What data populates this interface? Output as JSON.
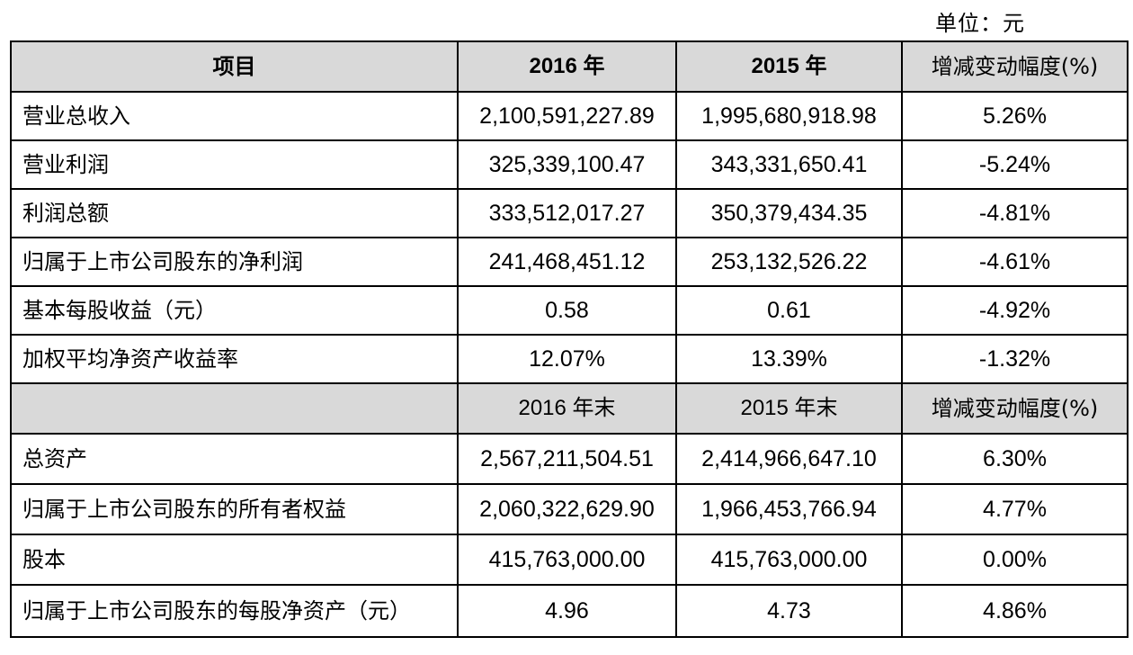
{
  "unit_label": "单位：元",
  "header": {
    "item": "项目",
    "year1": "2016 年",
    "year2": "2015 年",
    "change": "增减变动幅度(%)"
  },
  "rows_a": [
    {
      "label": "营业总收入",
      "v2016": "2,100,591,227.89",
      "v2015": "1,995,680,918.98",
      "change": "5.26%"
    },
    {
      "label": "营业利润",
      "v2016": "325,339,100.47",
      "v2015": "343,331,650.41",
      "change": "-5.24%"
    },
    {
      "label": "利润总额",
      "v2016": "333,512,017.27",
      "v2015": "350,379,434.35",
      "change": "-4.81%"
    },
    {
      "label": "归属于上市公司股东的净利润",
      "v2016": "241,468,451.12",
      "v2015": "253,132,526.22",
      "change": "-4.61%"
    },
    {
      "label": "基本每股收益（元）",
      "v2016": "0.58",
      "v2015": "0.61",
      "change": "-4.92%"
    },
    {
      "label": "加权平均净资产收益率",
      "v2016": "12.07%",
      "v2015": "13.39%",
      "change": "-1.32%"
    }
  ],
  "header2": {
    "item": "",
    "year1": "2016 年末",
    "year2": "2015 年末",
    "change": "增减变动幅度(%)"
  },
  "rows_b": [
    {
      "label": "总资产",
      "v2016": "2,567,211,504.51",
      "v2015": "2,414,966,647.10",
      "change": "6.30%"
    },
    {
      "label": "归属于上市公司股东的所有者权益",
      "v2016": "2,060,322,629.90",
      "v2015": "1,966,453,766.94",
      "change": "4.77%"
    },
    {
      "label": "股本",
      "v2016": "415,763,000.00",
      "v2015": "415,763,000.00",
      "change": "0.00%"
    },
    {
      "label": "归属于上市公司股东的每股净资产（元）",
      "v2016": "4.96",
      "v2015": "4.73",
      "change": "4.86%"
    }
  ],
  "colors": {
    "header_bg": "#d9d9d9",
    "border": "#000000"
  }
}
